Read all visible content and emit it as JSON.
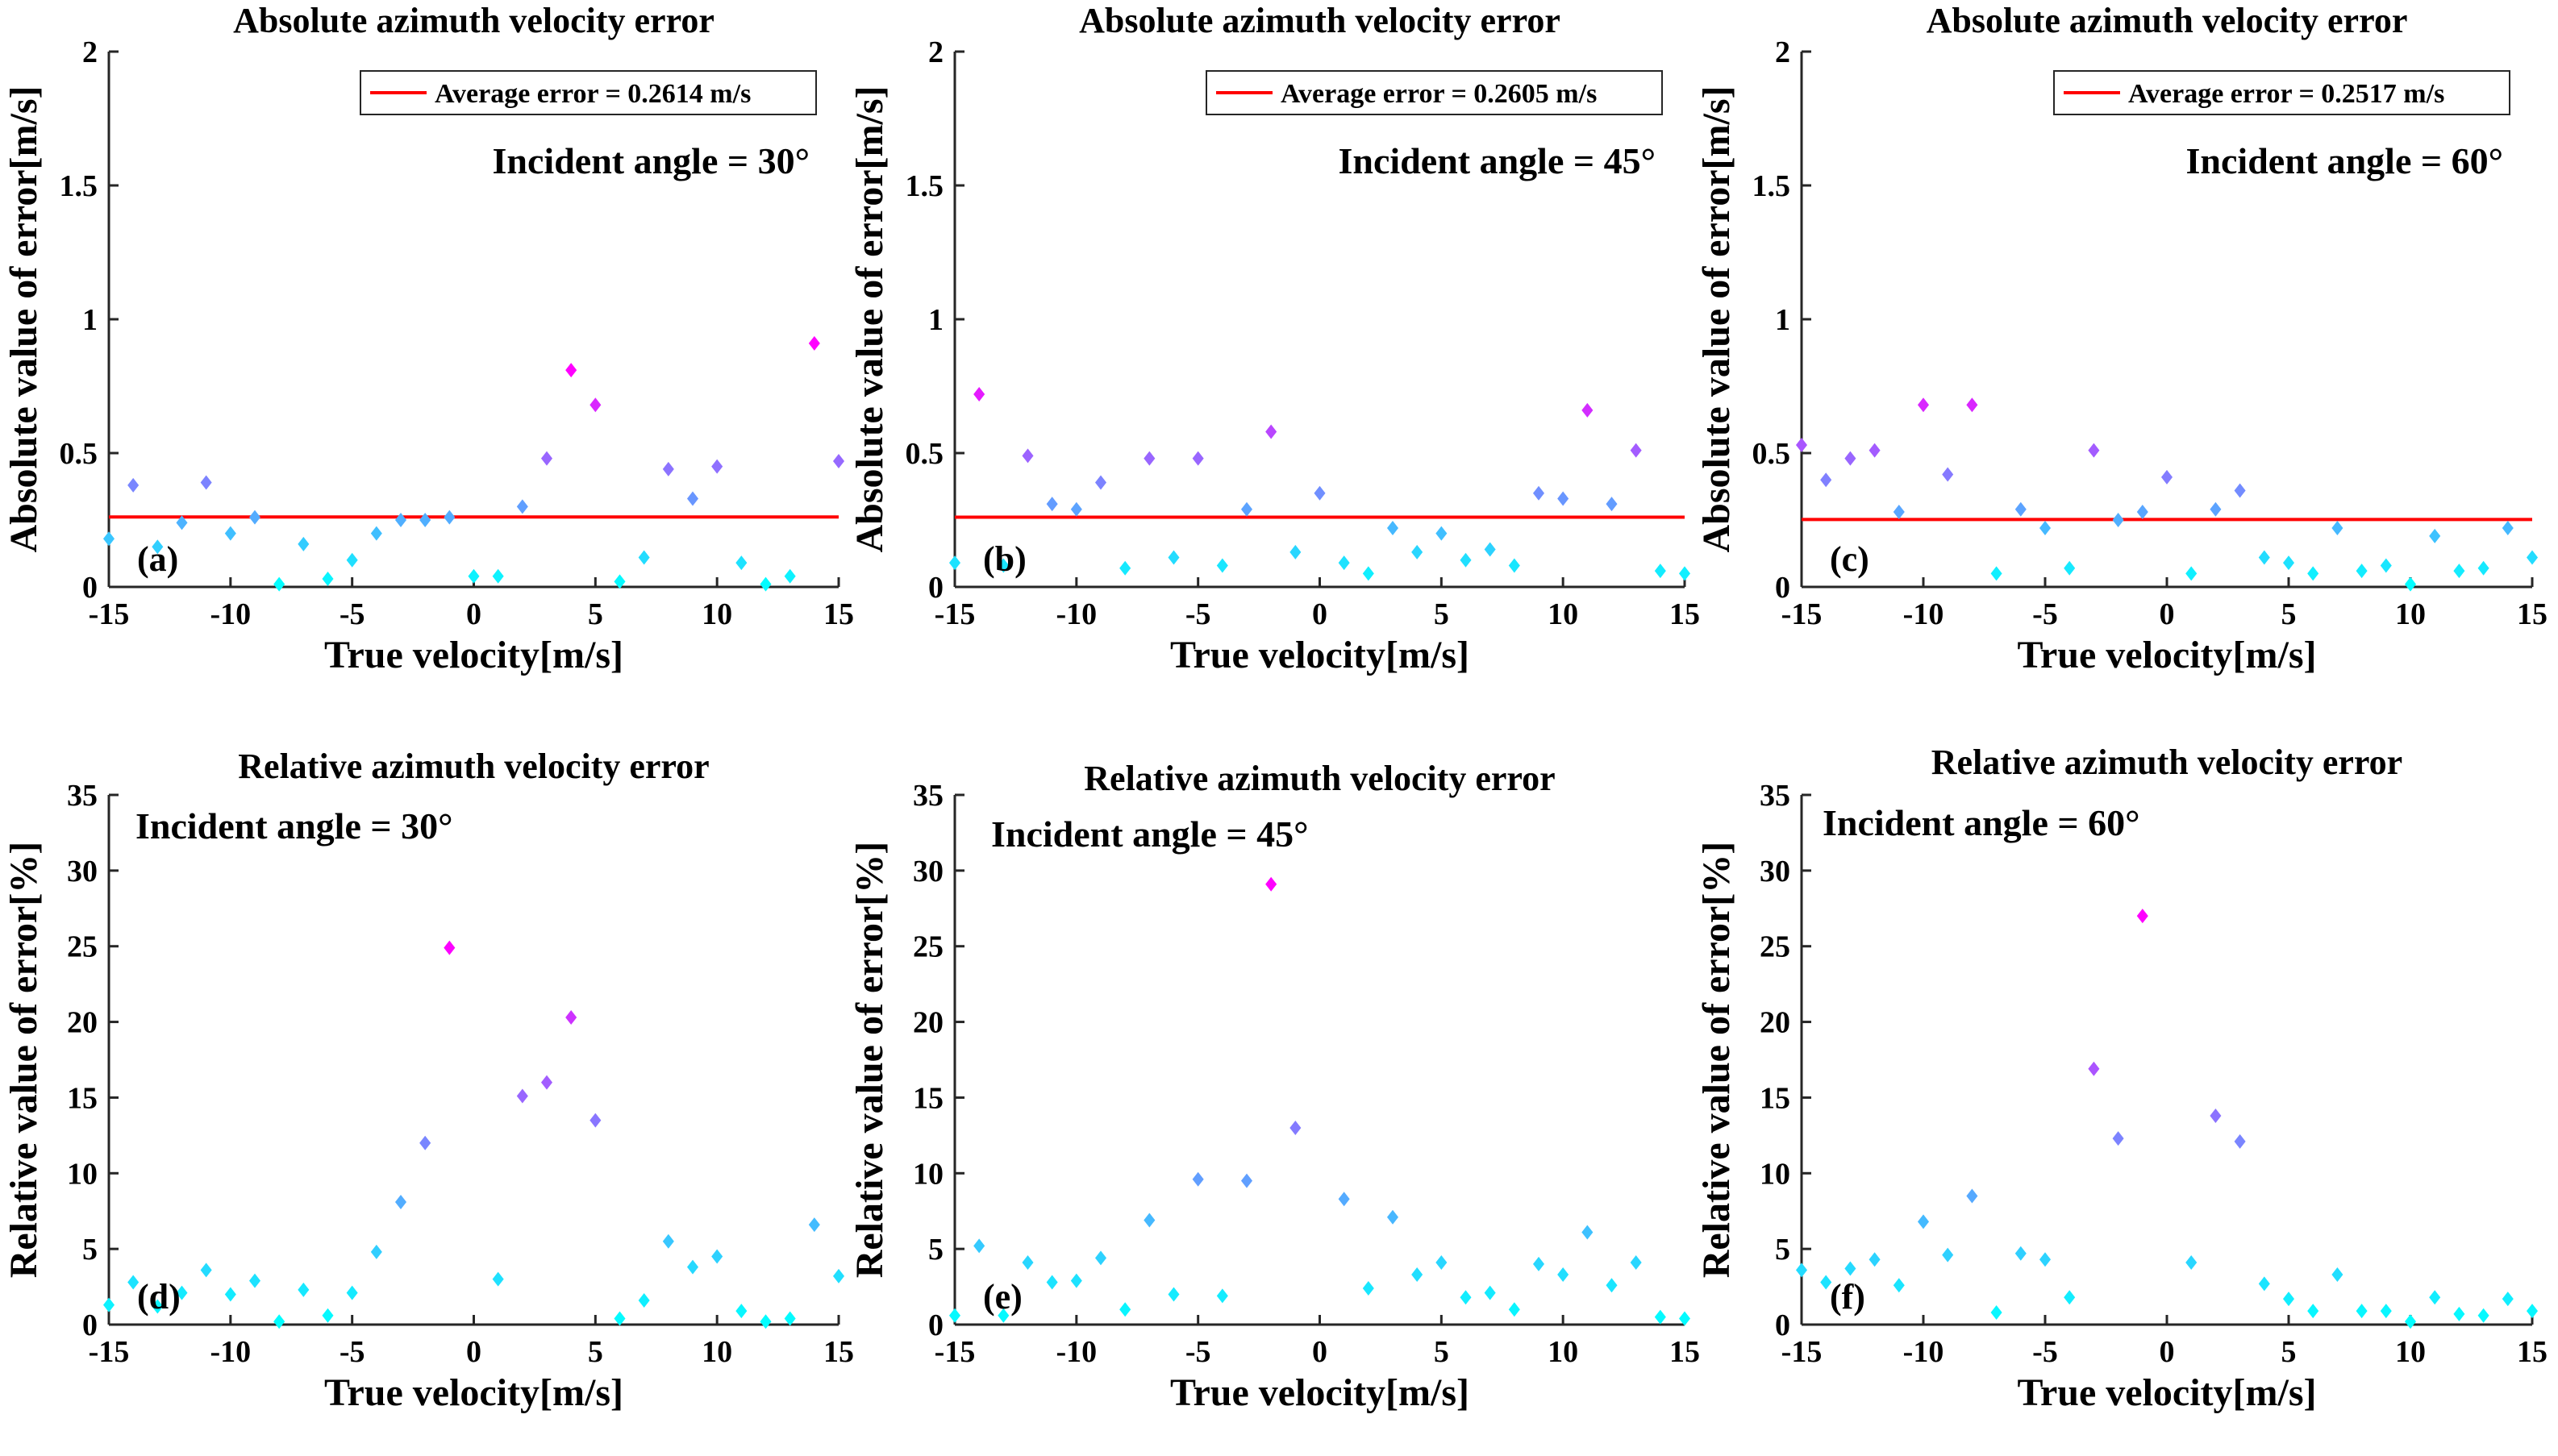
{
  "chart_data": [
    {
      "id": "a",
      "type": "scatter",
      "title": "Absolute azimuth velocity error",
      "xlabel": "True velocity[m/s]",
      "ylabel": "Absolute value of error[m/s]",
      "xlim": [
        -15,
        15
      ],
      "ylim": [
        0,
        2
      ],
      "xticks": [
        -15,
        -10,
        -5,
        0,
        5,
        10,
        15
      ],
      "xtick_labels": [
        "-15",
        "-10",
        "-5",
        "0",
        "5",
        "10",
        "15"
      ],
      "yticks": [
        0,
        0.5,
        1,
        1.5,
        2
      ],
      "ytick_labels": [
        "0",
        "0.5",
        "1",
        "1.5",
        "2"
      ],
      "annotation": "Incident angle = 30°",
      "panel_label": "(a)",
      "legend": "Average error = 0.2614 m/s",
      "average": 0.2614,
      "x": [
        -15,
        -14,
        -13,
        -12,
        -11,
        -10,
        -9,
        -8,
        -7,
        -6,
        -5,
        -4,
        -3,
        -2,
        -1,
        0,
        1,
        2,
        3,
        4,
        5,
        6,
        7,
        8,
        9,
        10,
        11,
        12,
        13,
        14,
        15
      ],
      "y": [
        0.18,
        0.38,
        0.15,
        0.24,
        0.39,
        0.2,
        0.26,
        0.01,
        0.16,
        0.03,
        0.1,
        0.2,
        0.25,
        0.25,
        0.26,
        0.04,
        0.04,
        0.3,
        0.48,
        0.81,
        0.68,
        0.02,
        0.11,
        0.44,
        0.33,
        0.45,
        0.09,
        0.01,
        0.04,
        0.91,
        0.47
      ]
    },
    {
      "id": "b",
      "type": "scatter",
      "title": "Absolute azimuth velocity error",
      "xlabel": "True velocity[m/s]",
      "ylabel": "Absolute value of error[m/s]",
      "xlim": [
        -15,
        15
      ],
      "ylim": [
        0,
        2
      ],
      "xticks": [
        -15,
        -10,
        -5,
        0,
        5,
        10,
        15
      ],
      "xtick_labels": [
        "-15",
        "-10",
        "-5",
        "0",
        "5",
        "10",
        "15"
      ],
      "yticks": [
        0,
        0.5,
        1,
        1.5,
        2
      ],
      "ytick_labels": [
        "0",
        "0.5",
        "1",
        "1.5",
        "2"
      ],
      "annotation": "Incident angle = 45°",
      "panel_label": "(b)",
      "legend": "Average error = 0.2605 m/s",
      "average": 0.2605,
      "x": [
        -15,
        -14,
        -13,
        -12,
        -11,
        -10,
        -9,
        -8,
        -7,
        -6,
        -5,
        -4,
        -3,
        -2,
        -1,
        0,
        1,
        2,
        3,
        4,
        5,
        6,
        7,
        8,
        9,
        10,
        11,
        12,
        13,
        14,
        15
      ],
      "y": [
        0.09,
        0.72,
        0.08,
        0.49,
        0.31,
        0.29,
        0.39,
        0.07,
        0.48,
        0.11,
        0.48,
        0.08,
        0.29,
        0.58,
        0.13,
        0.35,
        0.09,
        0.05,
        0.22,
        0.13,
        0.2,
        0.1,
        0.14,
        0.08,
        0.35,
        0.33,
        0.66,
        0.31,
        0.51,
        0.06,
        0.05
      ]
    },
    {
      "id": "c",
      "type": "scatter",
      "title": "Absolute azimuth velocity error",
      "xlabel": "True velocity[m/s]",
      "ylabel": "Absolute value of error[m/s]",
      "xlim": [
        -15,
        15
      ],
      "ylim": [
        0,
        2
      ],
      "xticks": [
        -15,
        -10,
        -5,
        0,
        5,
        10,
        15
      ],
      "xtick_labels": [
        "-15",
        "-10",
        "-5",
        "0",
        "5",
        "10",
        "15"
      ],
      "yticks": [
        0,
        0.5,
        1,
        1.5,
        2
      ],
      "ytick_labels": [
        "0",
        "0.5",
        "1",
        "1.5",
        "2"
      ],
      "annotation": "Incident angle = 60°",
      "panel_label": "(c)",
      "legend": "Average error = 0.2517 m/s",
      "average": 0.2517,
      "x": [
        -15,
        -14,
        -13,
        -12,
        -11,
        -10,
        -9,
        -8,
        -7,
        -6,
        -5,
        -4,
        -3,
        -2,
        -1,
        0,
        1,
        2,
        3,
        4,
        5,
        6,
        7,
        8,
        9,
        10,
        11,
        12,
        13,
        14,
        15
      ],
      "y": [
        0.53,
        0.4,
        0.48,
        0.51,
        0.28,
        0.68,
        0.42,
        0.68,
        0.05,
        0.29,
        0.22,
        0.07,
        0.51,
        0.25,
        0.28,
        0.41,
        0.05,
        0.29,
        0.36,
        0.11,
        0.09,
        0.05,
        0.22,
        0.06,
        0.08,
        0.01,
        0.19,
        0.06,
        0.07,
        0.22,
        0.11
      ]
    },
    {
      "id": "d",
      "type": "scatter",
      "title": "Relative azimuth velocity error",
      "xlabel": "True velocity[m/s]",
      "ylabel": "Relative value of error[%]",
      "xlim": [
        -15,
        15
      ],
      "ylim": [
        0,
        35
      ],
      "xticks": [
        -15,
        -10,
        -5,
        0,
        5,
        10,
        15
      ],
      "xtick_labels": [
        "-15",
        "-10",
        "-5",
        "0",
        "5",
        "10",
        "15"
      ],
      "yticks": [
        0,
        5,
        10,
        15,
        20,
        25,
        30,
        35
      ],
      "ytick_labels": [
        "0",
        "5",
        "10",
        "15",
        "20",
        "25",
        "30",
        "35"
      ],
      "annotation": "Incident angle = 30°",
      "panel_label": "(d)",
      "x": [
        -15,
        -14,
        -13,
        -12,
        -11,
        -10,
        -9,
        -8,
        -7,
        -6,
        -5,
        -4,
        -3,
        -2,
        -1,
        1,
        2,
        3,
        4,
        5,
        6,
        7,
        8,
        9,
        10,
        11,
        12,
        13,
        14,
        15
      ],
      "y": [
        1.3,
        2.8,
        1.2,
        2.1,
        3.6,
        2.0,
        2.9,
        0.2,
        2.3,
        0.6,
        2.1,
        4.8,
        8.1,
        12.0,
        24.9,
        3.0,
        15.1,
        16.0,
        20.3,
        13.5,
        0.4,
        1.6,
        5.5,
        3.8,
        4.5,
        0.9,
        0.2,
        0.4,
        6.6,
        3.2
      ]
    },
    {
      "id": "e",
      "type": "scatter",
      "title": "Relative azimuth velocity error",
      "xlabel": "True velocity[m/s]",
      "ylabel": "Relative value of error[%]",
      "xlim": [
        -15,
        15
      ],
      "ylim": [
        0,
        35
      ],
      "xticks": [
        -15,
        -10,
        -5,
        0,
        5,
        10,
        15
      ],
      "xtick_labels": [
        "-15",
        "-10",
        "-5",
        "0",
        "5",
        "10",
        "15"
      ],
      "yticks": [
        0,
        5,
        10,
        15,
        20,
        25,
        30,
        35
      ],
      "ytick_labels": [
        "0",
        "5",
        "10",
        "15",
        "20",
        "25",
        "30",
        "35"
      ],
      "annotation": "Incident angle = 45°",
      "panel_label": "(e)",
      "x": [
        -15,
        -14,
        -13,
        -12,
        -11,
        -10,
        -9,
        -8,
        -7,
        -6,
        -5,
        -4,
        -3,
        -2,
        -1,
        1,
        2,
        3,
        4,
        5,
        6,
        7,
        8,
        9,
        10,
        11,
        12,
        13,
        14,
        15
      ],
      "y": [
        0.6,
        5.2,
        0.6,
        4.1,
        2.8,
        2.9,
        4.4,
        1.0,
        6.9,
        2.0,
        9.6,
        1.9,
        9.5,
        29.1,
        13.0,
        8.3,
        2.4,
        7.1,
        3.3,
        4.1,
        1.8,
        2.1,
        1.0,
        4.0,
        3.3,
        6.1,
        2.6,
        4.1,
        0.5,
        0.4
      ]
    },
    {
      "id": "f",
      "type": "scatter",
      "title": "Relative azimuth velocity error",
      "xlabel": "True velocity[m/s]",
      "ylabel": "Relative value of error[%]",
      "xlim": [
        -15,
        15
      ],
      "ylim": [
        0,
        35
      ],
      "xticks": [
        -15,
        -10,
        -5,
        0,
        5,
        10,
        15
      ],
      "xtick_labels": [
        "-15",
        "-10",
        "-5",
        "0",
        "5",
        "10",
        "15"
      ],
      "yticks": [
        0,
        5,
        10,
        15,
        20,
        25,
        30,
        35
      ],
      "ytick_labels": [
        "0",
        "5",
        "10",
        "15",
        "20",
        "25",
        "30",
        "35"
      ],
      "annotation": "Incident angle = 60°",
      "panel_label": "(f)",
      "x": [
        -15,
        -14,
        -13,
        -12,
        -11,
        -10,
        -9,
        -8,
        -7,
        -6,
        -5,
        -4,
        -3,
        -2,
        -1,
        1,
        2,
        3,
        4,
        5,
        6,
        7,
        8,
        9,
        10,
        11,
        12,
        13,
        14,
        15
      ],
      "y": [
        3.6,
        2.8,
        3.7,
        4.3,
        2.6,
        6.8,
        4.6,
        8.5,
        0.8,
        4.7,
        4.3,
        1.8,
        16.9,
        12.3,
        27.0,
        4.1,
        13.8,
        12.1,
        2.7,
        1.7,
        0.9,
        3.3,
        0.9,
        0.9,
        0.2,
        1.8,
        0.7,
        0.6,
        1.7,
        0.9
      ]
    }
  ]
}
